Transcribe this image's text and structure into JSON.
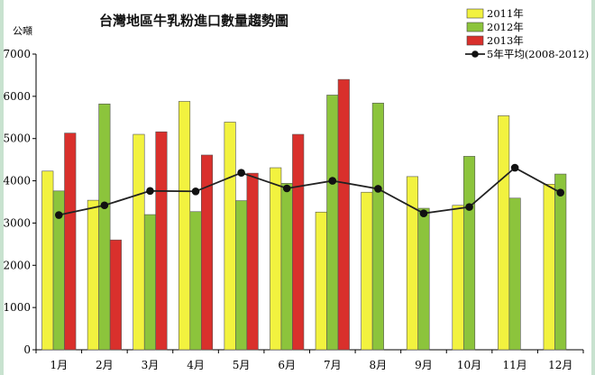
{
  "chart_data": {
    "type": "bar",
    "title": "台灣地區牛乳粉進口數量趨勢圖",
    "ylabel": "公噸",
    "xlabel": "",
    "ylim": [
      0,
      7000
    ],
    "yticks": [
      0,
      1000,
      2000,
      3000,
      4000,
      5000,
      6000,
      7000
    ],
    "categories": [
      "1月",
      "2月",
      "3月",
      "4月",
      "5月",
      "6月",
      "7月",
      "8月",
      "9月",
      "10月",
      "11月",
      "12月"
    ],
    "series": [
      {
        "name": "2011年",
        "type": "bar",
        "color": "#f2f23f",
        "values": [
          4230,
          3540,
          5100,
          5880,
          5390,
          4310,
          3260,
          3730,
          4100,
          3420,
          5540,
          3920
        ]
      },
      {
        "name": "2012年",
        "type": "bar",
        "color": "#8cc43c",
        "values": [
          3760,
          5820,
          3200,
          3270,
          3530,
          3940,
          6030,
          5840,
          3350,
          4580,
          3590,
          4160
        ]
      },
      {
        "name": "2013年",
        "type": "bar",
        "color": "#d9302c",
        "values": [
          5130,
          2600,
          5160,
          4610,
          4180,
          5100,
          6400,
          null,
          null,
          null,
          null,
          null
        ]
      },
      {
        "name": "5年平均(2008-2012)",
        "type": "line",
        "color": "#222222",
        "values": [
          3190,
          3420,
          3760,
          3750,
          4190,
          3820,
          4000,
          3810,
          3230,
          3380,
          4310,
          3720
        ]
      }
    ],
    "grid": false,
    "legend": "top-right"
  }
}
